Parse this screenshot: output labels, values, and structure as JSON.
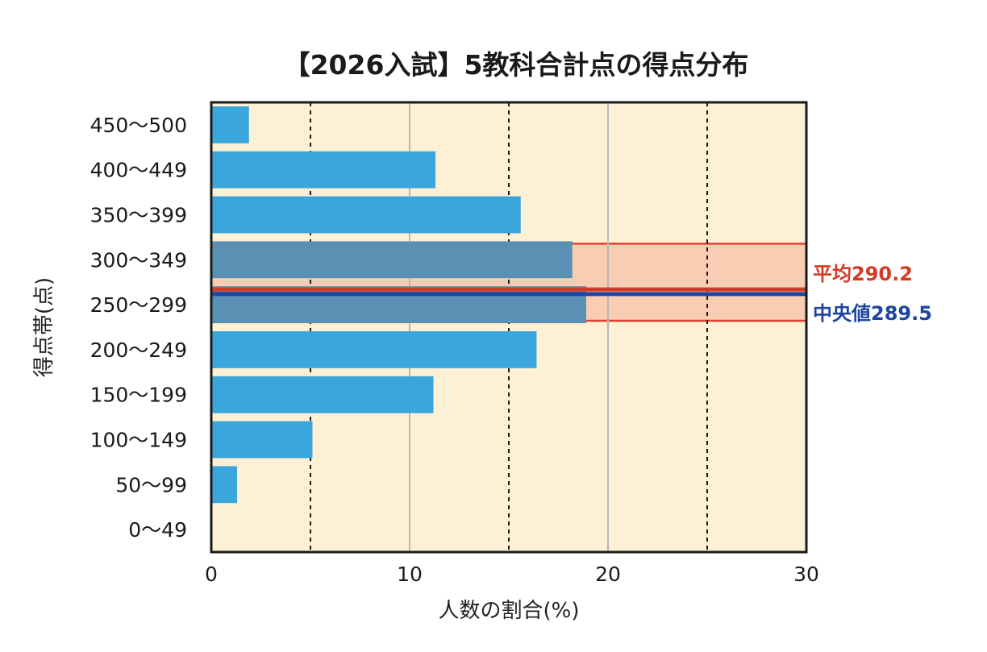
{
  "chart_data": {
    "type": "bar",
    "orientation": "horizontal",
    "title": "【2026入試】5教科合計点の得点分布",
    "xlabel": "人数の割合(%)",
    "ylabel": "得点帯(点)",
    "xlim": [
      0,
      30
    ],
    "x_ticks": [
      0,
      10,
      20,
      30
    ],
    "grid": {
      "solid_lines": [
        10,
        20
      ],
      "dashed_lines": [
        5,
        15,
        25
      ]
    },
    "categories": [
      "450〜500",
      "400〜449",
      "350〜399",
      "300〜349",
      "250〜299",
      "200〜249",
      "150〜199",
      "100〜149",
      "50〜99",
      "0〜49"
    ],
    "values": [
      1.9,
      11.3,
      15.6,
      18.2,
      18.9,
      16.4,
      11.2,
      5.1,
      1.3,
      0
    ],
    "highlight": {
      "categories": [
        "300〜349",
        "250〜299"
      ]
    },
    "annotations": {
      "mean": {
        "label": "平均290.2",
        "value": 290.2,
        "color": "#d23b25"
      },
      "median": {
        "label": "中央値289.5",
        "value": 289.5,
        "color": "#1e45a0"
      }
    },
    "colors": {
      "bar": "#3aa6dc",
      "bar_highlight": "#5b90b5",
      "plot_background": "#fdf0d4",
      "highlight_fill": "#f9cdb3",
      "highlight_border": "#e0402f",
      "grid_solid": "#b8b8b8",
      "grid_dashed": "#1a1a1a"
    }
  }
}
